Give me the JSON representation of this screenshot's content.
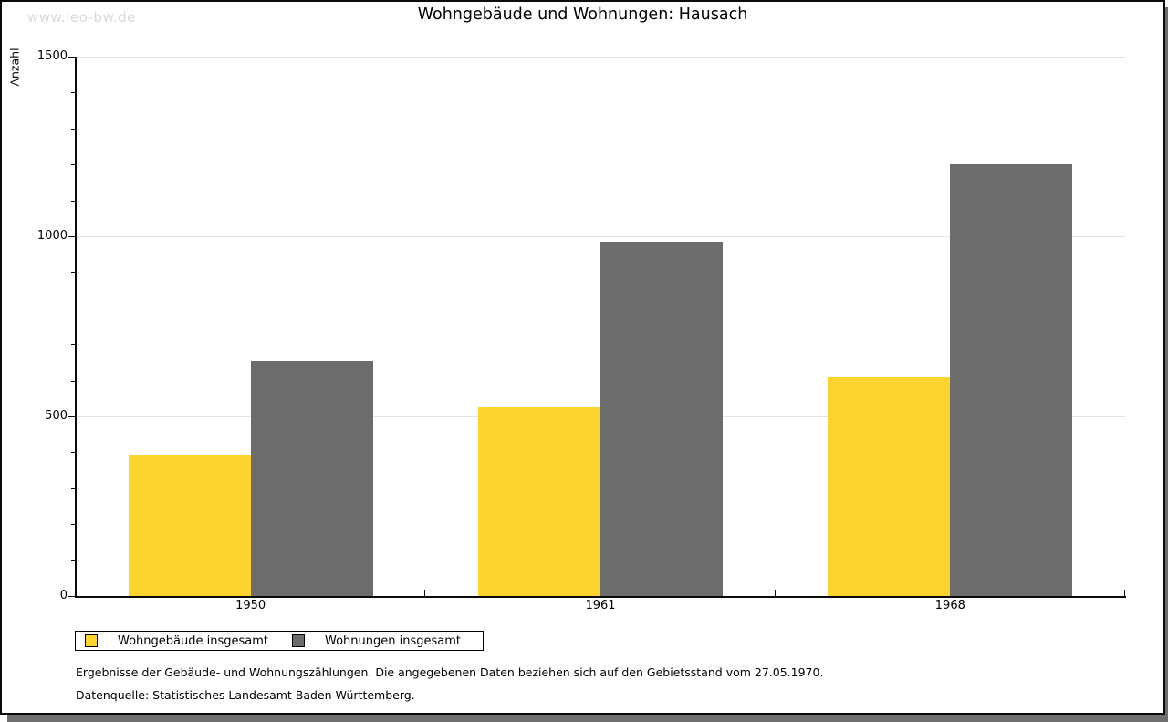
{
  "page": {
    "watermark": "www.leo-bw.de",
    "title": "Wohngebäude und Wohnungen: Hausach"
  },
  "chart_data": {
    "type": "bar",
    "title": "Wohngebäude und Wohnungen: Hausach",
    "xlabel": "",
    "ylabel": "Anzahl",
    "categories": [
      "1950",
      "1961",
      "1968"
    ],
    "series": [
      {
        "name": "Wohngebäude insgesamt",
        "color": "#FDD42E",
        "values": [
          390,
          525,
          610
        ]
      },
      {
        "name": "Wohnungen insgesamt",
        "color": "#6C6C6C",
        "values": [
          655,
          985,
          1200
        ]
      }
    ],
    "ylim": [
      0,
      1500
    ],
    "y_major_ticks": [
      0,
      500,
      1000,
      1500
    ],
    "y_minor_step": 100,
    "grid": "horizontal-major",
    "legend_position": "bottom-left"
  },
  "footer": {
    "note": "Ergebnisse der Gebäude- und Wohnungszählungen. Die angegebenen Daten beziehen sich auf den Gebietsstand vom 27.05.1970.",
    "source": "Datenquelle: Statistisches Landesamt Baden-Württemberg."
  },
  "colors": {
    "series_yellow": "#FDD42E",
    "series_gray": "#6C6C6C",
    "gridline": "#e3e3e3",
    "axis": "#0a0a0a",
    "watermark": "#d9d9d9",
    "shadow": "#6e6e6e"
  }
}
